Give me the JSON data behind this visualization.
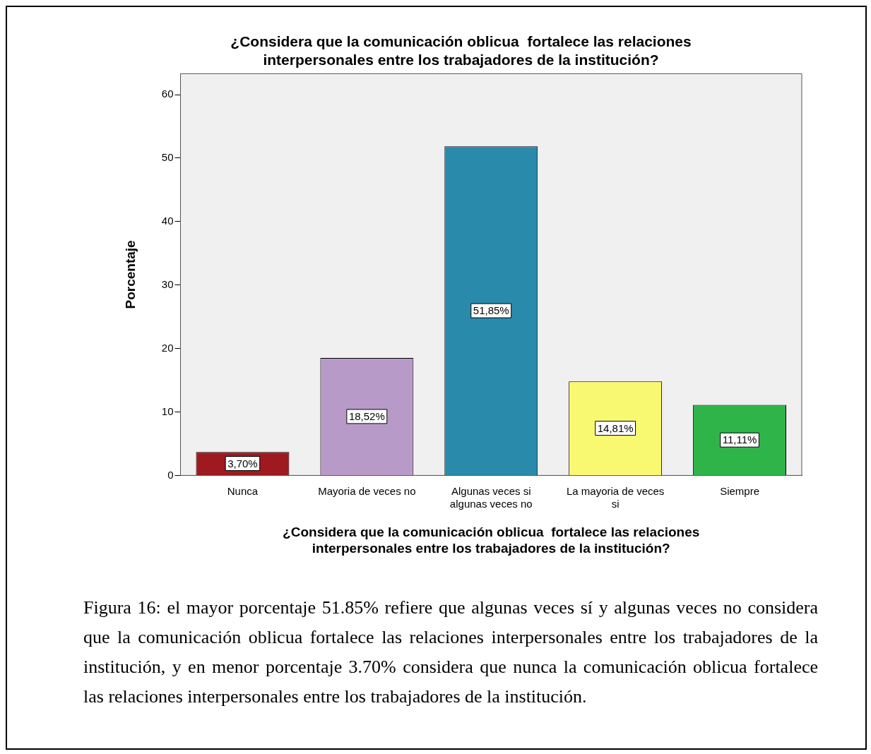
{
  "chart_data": {
    "type": "bar",
    "title": "¿Considera que la comunicación oblicua  fortalece las relaciones interpersonales entre los trabajadores de la institución?",
    "xlabel": "¿Considera que la comunicación oblicua  fortalece las relaciones interpersonales entre los trabajadores de la institución?",
    "ylabel": "Porcentaje",
    "categories": [
      "Nunca",
      "Mayoria de veces no",
      "Algunas veces si algunas veces no",
      "La mayoria de veces si",
      "Siempre"
    ],
    "values": [
      3.7,
      18.52,
      51.85,
      14.81,
      11.11
    ],
    "value_labels": [
      "3,70%",
      "18,52%",
      "51,85%",
      "14,81%",
      "11,11%"
    ],
    "colors": [
      "#9e1a1e",
      "#b89ac8",
      "#2a8aac",
      "#f9f871",
      "#2fb44a"
    ],
    "ylim": [
      0,
      63.3
    ],
    "yticks": [
      0,
      10,
      20,
      30,
      40,
      50,
      60
    ],
    "annotations": [
      "Figura 16: el mayor porcentaje 51.85% refiere que algunas veces sí y algunas veces no considera que la comunicación oblicua fortalece las relaciones interpersonales entre los trabajadores de la institución, y en menor porcentaje 3.70% considera que nunca la comunicación oblicua fortalece las relaciones interpersonales entre los trabajadores de la institución."
    ]
  }
}
